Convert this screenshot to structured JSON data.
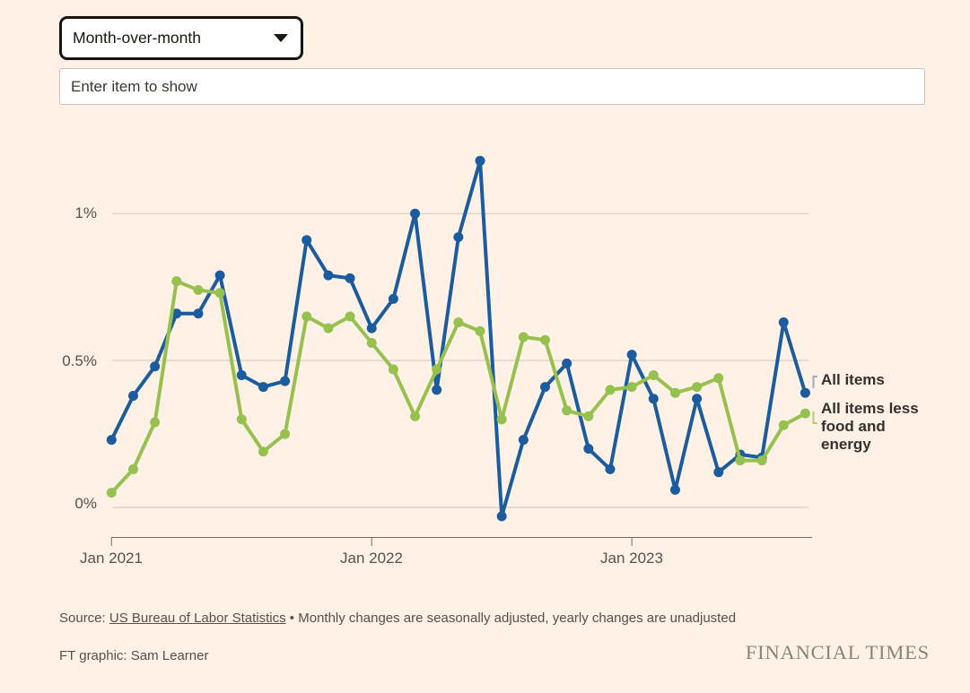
{
  "page": {
    "background": "#fff1e5"
  },
  "controls": {
    "view_dropdown": {
      "value": "Month-over-month"
    },
    "item_input": {
      "placeholder": "Enter item to show"
    }
  },
  "chart_data": {
    "type": "line",
    "x": [
      "Jan 2021",
      "Feb 2021",
      "Mar 2021",
      "Apr 2021",
      "May 2021",
      "Jun 2021",
      "Jul 2021",
      "Aug 2021",
      "Sep 2021",
      "Oct 2021",
      "Nov 2021",
      "Dec 2021",
      "Jan 2022",
      "Feb 2022",
      "Mar 2022",
      "Apr 2022",
      "May 2022",
      "Jun 2022",
      "Jul 2022",
      "Aug 2022",
      "Sep 2022",
      "Oct 2022",
      "Nov 2022",
      "Dec 2022",
      "Jan 2023",
      "Feb 2023",
      "Mar 2023",
      "Apr 2023",
      "May 2023",
      "Jun 2023",
      "Jul 2023",
      "Aug 2023",
      "Sep 2023"
    ],
    "series": [
      {
        "name": "All items",
        "color": "#1b5c9e",
        "values": [
          0.23,
          0.38,
          0.48,
          0.66,
          0.66,
          0.79,
          0.45,
          0.41,
          0.43,
          0.91,
          0.79,
          0.78,
          0.61,
          0.71,
          1.0,
          0.4,
          0.92,
          1.18,
          -0.03,
          0.23,
          0.41,
          0.49,
          0.2,
          0.13,
          0.52,
          0.37,
          0.06,
          0.37,
          0.12,
          0.18,
          0.17,
          0.63,
          0.39
        ]
      },
      {
        "name": "All items less food and energy",
        "color": "#97c14f",
        "values": [
          0.05,
          0.13,
          0.29,
          0.77,
          0.74,
          0.73,
          0.3,
          0.19,
          0.25,
          0.65,
          0.61,
          0.65,
          0.56,
          0.47,
          0.31,
          0.47,
          0.63,
          0.6,
          0.3,
          0.58,
          0.57,
          0.33,
          0.31,
          0.4,
          0.41,
          0.45,
          0.39,
          0.41,
          0.44,
          0.16,
          0.16,
          0.28,
          0.32
        ]
      }
    ],
    "yticks": [
      {
        "value": 0,
        "label": "0%"
      },
      {
        "value": 0.5,
        "label": "0.5%"
      },
      {
        "value": 1,
        "label": "1%"
      }
    ],
    "xticks": [
      {
        "index": 0,
        "label": "Jan 2021"
      },
      {
        "index": 12,
        "label": "Jan 2022"
      },
      {
        "index": 24,
        "label": "Jan 2023"
      }
    ],
    "ylim": [
      -0.1,
      1.25
    ],
    "grid": "horizontal",
    "legend_position": "right",
    "title": ""
  },
  "footer": {
    "source_prefix": "Source: ",
    "source_link": "US Bureau of Labor Statistics",
    "source_suffix": " • Monthly changes are seasonally adjusted, yearly changes are unadjusted",
    "credit": "FT graphic: Sam Learner",
    "brand": "FINANCIAL TIMES"
  }
}
